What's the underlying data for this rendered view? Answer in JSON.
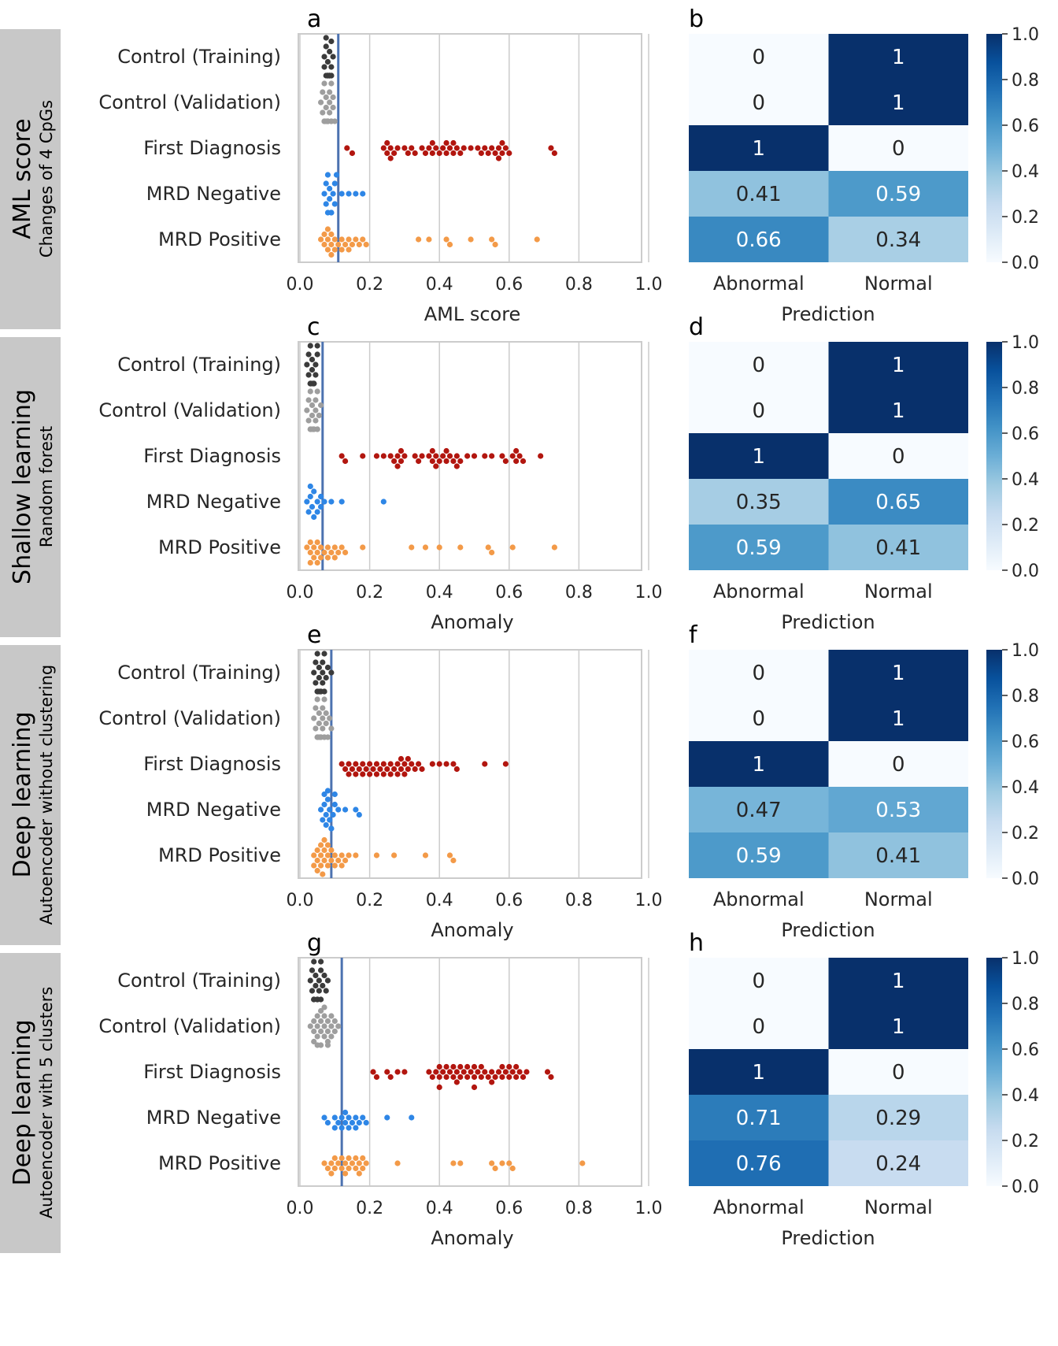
{
  "chart_data": [
    {
      "type": "swarm",
      "panel_label": "a",
      "row_label": "AML score",
      "row_sublabel": "Changes of 4 CpGs",
      "xlabel": "AML score",
      "xlim": [
        0.0,
        1.0
      ],
      "xticks": [
        "0.0",
        "0.2",
        "0.4",
        "0.6",
        "0.8",
        "1.0"
      ],
      "threshold": 0.11,
      "groups": [
        {
          "name": "Control (Training)",
          "color": "#3b3b3b",
          "values": [
            0.07,
            0.075,
            0.08,
            0.085,
            0.09,
            0.095,
            0.07,
            0.08,
            0.085,
            0.09,
            0.075,
            0.08,
            0.085,
            0.09,
            0.08,
            0.075,
            0.085,
            0.09,
            0.08,
            0.085
          ]
        },
        {
          "name": "Control (Validation)",
          "color": "#9e9e9e",
          "values": [
            0.06,
            0.065,
            0.07,
            0.075,
            0.08,
            0.085,
            0.09,
            0.095,
            0.1,
            0.065,
            0.07,
            0.075,
            0.08,
            0.085,
            0.09,
            0.095,
            0.07,
            0.08,
            0.09,
            0.075,
            0.085,
            0.08
          ]
        },
        {
          "name": "First Diagnosis",
          "color": "#b2160f",
          "values": [
            0.135,
            0.15,
            0.24,
            0.25,
            0.26,
            0.27,
            0.28,
            0.3,
            0.31,
            0.32,
            0.33,
            0.35,
            0.36,
            0.37,
            0.38,
            0.39,
            0.4,
            0.41,
            0.42,
            0.43,
            0.44,
            0.45,
            0.46,
            0.47,
            0.49,
            0.51,
            0.52,
            0.53,
            0.54,
            0.55,
            0.56,
            0.57,
            0.58,
            0.59,
            0.6,
            0.73,
            0.72,
            0.42,
            0.44,
            0.57,
            0.58,
            0.25,
            0.26,
            0.38
          ]
        },
        {
          "name": "MRD Negative",
          "color": "#2e86e6",
          "values": [
            0.07,
            0.075,
            0.08,
            0.085,
            0.09,
            0.095,
            0.1,
            0.105,
            0.12,
            0.14,
            0.16,
            0.18,
            0.08,
            0.09,
            0.1,
            0.075,
            0.085
          ]
        },
        {
          "name": "MRD Positive",
          "color": "#f39a48",
          "values": [
            0.06,
            0.07,
            0.08,
            0.09,
            0.1,
            0.11,
            0.12,
            0.13,
            0.14,
            0.15,
            0.16,
            0.17,
            0.18,
            0.19,
            0.07,
            0.08,
            0.09,
            0.1,
            0.12,
            0.14,
            0.34,
            0.37,
            0.42,
            0.43,
            0.49,
            0.55,
            0.56,
            0.68,
            0.08,
            0.09
          ]
        }
      ],
      "matrix": {
        "xlabel": "Prediction",
        "xticks": [
          "Abnormal",
          "Normal"
        ],
        "values": [
          [
            "0",
            "1"
          ],
          [
            "0",
            "1"
          ],
          [
            "1",
            "0"
          ],
          [
            "0.41",
            "0.59"
          ],
          [
            "0.66",
            "0.34"
          ]
        ]
      },
      "colorbar_ticks": [
        "0.0",
        "0.2",
        "0.4",
        "0.6",
        "0.8",
        "1.0"
      ]
    },
    {
      "type": "swarm",
      "panel_label": "c",
      "row_label": "Shallow learning",
      "row_sublabel": "Random forest",
      "xlabel": "Anomaly",
      "xlim": [
        0.0,
        1.0
      ],
      "xticks": [
        "0.0",
        "0.2",
        "0.4",
        "0.6",
        "0.8",
        "1.0"
      ],
      "threshold": 0.065,
      "groups": [
        {
          "name": "Control (Training)",
          "color": "#3b3b3b",
          "values": [
            0.02,
            0.025,
            0.03,
            0.035,
            0.04,
            0.045,
            0.05,
            0.025,
            0.03,
            0.035,
            0.04,
            0.045,
            0.03,
            0.035,
            0.04,
            0.05,
            0.03,
            0.04
          ]
        },
        {
          "name": "Control (Validation)",
          "color": "#9e9e9e",
          "values": [
            0.02,
            0.025,
            0.03,
            0.035,
            0.04,
            0.045,
            0.05,
            0.055,
            0.06,
            0.025,
            0.03,
            0.035,
            0.04,
            0.045,
            0.05,
            0.03,
            0.04,
            0.035,
            0.045,
            0.05
          ]
        },
        {
          "name": "First Diagnosis",
          "color": "#b2160f",
          "values": [
            0.12,
            0.13,
            0.18,
            0.22,
            0.24,
            0.26,
            0.27,
            0.28,
            0.29,
            0.3,
            0.33,
            0.34,
            0.35,
            0.37,
            0.38,
            0.39,
            0.4,
            0.41,
            0.42,
            0.43,
            0.44,
            0.45,
            0.46,
            0.48,
            0.5,
            0.53,
            0.55,
            0.58,
            0.59,
            0.61,
            0.62,
            0.63,
            0.64,
            0.69,
            0.28,
            0.38,
            0.42,
            0.45,
            0.62,
            0.29,
            0.39
          ]
        },
        {
          "name": "MRD Negative",
          "color": "#2e86e6",
          "values": [
            0.02,
            0.03,
            0.04,
            0.05,
            0.06,
            0.07,
            0.09,
            0.12,
            0.24,
            0.03,
            0.04,
            0.05,
            0.06,
            0.025,
            0.035
          ]
        },
        {
          "name": "MRD Positive",
          "color": "#f39a48",
          "values": [
            0.02,
            0.03,
            0.04,
            0.05,
            0.06,
            0.07,
            0.08,
            0.09,
            0.1,
            0.11,
            0.12,
            0.13,
            0.18,
            0.32,
            0.36,
            0.4,
            0.46,
            0.54,
            0.55,
            0.61,
            0.73,
            0.03,
            0.04,
            0.05,
            0.06,
            0.08,
            0.1,
            0.03,
            0.05
          ]
        }
      ],
      "matrix": {
        "xlabel": "Prediction",
        "xticks": [
          "Abnormal",
          "Normal"
        ],
        "values": [
          [
            "0",
            "1"
          ],
          [
            "0",
            "1"
          ],
          [
            "1",
            "0"
          ],
          [
            "0.35",
            "0.65"
          ],
          [
            "0.59",
            "0.41"
          ]
        ]
      },
      "colorbar_ticks": [
        "0.0",
        "0.2",
        "0.4",
        "0.6",
        "0.8",
        "1.0"
      ]
    },
    {
      "type": "swarm",
      "panel_label": "e",
      "row_label": "Deep learning",
      "row_sublabel": "Autoencoder without clustering",
      "xlabel": "Anomaly",
      "xlim": [
        0.0,
        1.0
      ],
      "xticks": [
        "0.0",
        "0.2",
        "0.4",
        "0.6",
        "0.8",
        "1.0"
      ],
      "threshold": 0.09,
      "groups": [
        {
          "name": "Control (Training)",
          "color": "#3b3b3b",
          "values": [
            0.04,
            0.045,
            0.05,
            0.055,
            0.06,
            0.065,
            0.07,
            0.075,
            0.08,
            0.045,
            0.05,
            0.055,
            0.06,
            0.065,
            0.07,
            0.05,
            0.06,
            0.07,
            0.09,
            0.055,
            0.065
          ]
        },
        {
          "name": "Control (Validation)",
          "color": "#9e9e9e",
          "values": [
            0.04,
            0.045,
            0.05,
            0.055,
            0.06,
            0.065,
            0.07,
            0.075,
            0.08,
            0.085,
            0.09,
            0.045,
            0.05,
            0.055,
            0.06,
            0.065,
            0.07,
            0.075,
            0.05,
            0.06,
            0.07,
            0.055,
            0.065
          ]
        },
        {
          "name": "First Diagnosis",
          "color": "#b2160f",
          "values": [
            0.12,
            0.13,
            0.14,
            0.15,
            0.16,
            0.17,
            0.18,
            0.19,
            0.2,
            0.21,
            0.22,
            0.23,
            0.24,
            0.25,
            0.26,
            0.27,
            0.28,
            0.29,
            0.3,
            0.31,
            0.32,
            0.33,
            0.34,
            0.35,
            0.38,
            0.4,
            0.42,
            0.44,
            0.45,
            0.53,
            0.59,
            0.14,
            0.16,
            0.18,
            0.2,
            0.26,
            0.28,
            0.3,
            0.31,
            0.22,
            0.24,
            0.29
          ]
        },
        {
          "name": "MRD Negative",
          "color": "#2e86e6",
          "values": [
            0.06,
            0.065,
            0.07,
            0.075,
            0.08,
            0.085,
            0.09,
            0.095,
            0.1,
            0.11,
            0.13,
            0.16,
            0.17,
            0.07,
            0.08,
            0.09,
            0.1,
            0.075,
            0.085
          ]
        },
        {
          "name": "MRD Positive",
          "color": "#f39a48",
          "values": [
            0.04,
            0.05,
            0.06,
            0.07,
            0.08,
            0.09,
            0.1,
            0.11,
            0.12,
            0.13,
            0.14,
            0.16,
            0.22,
            0.27,
            0.36,
            0.43,
            0.44,
            0.05,
            0.06,
            0.07,
            0.08,
            0.09,
            0.1,
            0.06,
            0.08,
            0.05,
            0.07,
            0.12,
            0.04,
            0.065
          ]
        }
      ],
      "matrix": {
        "xlabel": "Prediction",
        "xticks": [
          "Abnormal",
          "Normal"
        ],
        "values": [
          [
            "0",
            "1"
          ],
          [
            "0",
            "1"
          ],
          [
            "1",
            "0"
          ],
          [
            "0.47",
            "0.53"
          ],
          [
            "0.59",
            "0.41"
          ]
        ]
      },
      "colorbar_ticks": [
        "0.0",
        "0.2",
        "0.4",
        "0.6",
        "0.8",
        "1.0"
      ]
    },
    {
      "type": "swarm",
      "panel_label": "g",
      "row_label": "Deep learning",
      "row_sublabel": "Autoencoder with 5 clusters",
      "xlabel": "Anomaly",
      "xlim": [
        0.0,
        1.0
      ],
      "xticks": [
        "0.0",
        "0.2",
        "0.4",
        "0.6",
        "0.8",
        "1.0"
      ],
      "threshold": 0.12,
      "groups": [
        {
          "name": "Control (Training)",
          "color": "#3b3b3b",
          "values": [
            0.03,
            0.035,
            0.04,
            0.045,
            0.05,
            0.055,
            0.06,
            0.065,
            0.07,
            0.075,
            0.08,
            0.035,
            0.04,
            0.045,
            0.05,
            0.055,
            0.06,
            0.04,
            0.05,
            0.06
          ]
        },
        {
          "name": "Control (Validation)",
          "color": "#9e9e9e",
          "values": [
            0.03,
            0.04,
            0.05,
            0.06,
            0.07,
            0.08,
            0.09,
            0.1,
            0.11,
            0.04,
            0.05,
            0.06,
            0.07,
            0.08,
            0.09,
            0.1,
            0.04,
            0.05,
            0.06,
            0.07,
            0.08,
            0.05,
            0.06,
            0.07,
            0.08,
            0.09
          ]
        },
        {
          "name": "First Diagnosis",
          "color": "#b2160f",
          "values": [
            0.21,
            0.22,
            0.25,
            0.26,
            0.28,
            0.3,
            0.37,
            0.38,
            0.39,
            0.4,
            0.41,
            0.42,
            0.43,
            0.44,
            0.45,
            0.46,
            0.47,
            0.48,
            0.49,
            0.5,
            0.51,
            0.52,
            0.53,
            0.54,
            0.55,
            0.56,
            0.57,
            0.58,
            0.59,
            0.6,
            0.61,
            0.62,
            0.63,
            0.64,
            0.65,
            0.71,
            0.72,
            0.4,
            0.42,
            0.44,
            0.46,
            0.48,
            0.5,
            0.52,
            0.55,
            0.58,
            0.6,
            0.62,
            0.4,
            0.45,
            0.5
          ]
        },
        {
          "name": "MRD Negative",
          "color": "#2e86e6",
          "values": [
            0.07,
            0.08,
            0.1,
            0.11,
            0.12,
            0.13,
            0.14,
            0.15,
            0.16,
            0.17,
            0.18,
            0.19,
            0.25,
            0.32,
            0.12,
            0.14,
            0.16,
            0.1,
            0.13
          ]
        },
        {
          "name": "MRD Positive",
          "color": "#f39a48",
          "values": [
            0.07,
            0.08,
            0.09,
            0.1,
            0.11,
            0.12,
            0.13,
            0.14,
            0.15,
            0.16,
            0.17,
            0.18,
            0.19,
            0.28,
            0.44,
            0.46,
            0.55,
            0.56,
            0.58,
            0.6,
            0.61,
            0.81,
            0.1,
            0.12,
            0.14,
            0.16,
            0.18,
            0.09,
            0.13,
            0.17
          ]
        }
      ],
      "matrix": {
        "xlabel": "Prediction",
        "xticks": [
          "Abnormal",
          "Normal"
        ],
        "values": [
          [
            "0",
            "1"
          ],
          [
            "0",
            "1"
          ],
          [
            "1",
            "0"
          ],
          [
            "0.71",
            "0.29"
          ],
          [
            "0.76",
            "0.24"
          ]
        ]
      },
      "colorbar_ticks": [
        "0.0",
        "0.2",
        "0.4",
        "0.6",
        "0.8",
        "1.0"
      ]
    }
  ],
  "matrix_panel_labels": [
    "b",
    "d",
    "f",
    "h"
  ]
}
